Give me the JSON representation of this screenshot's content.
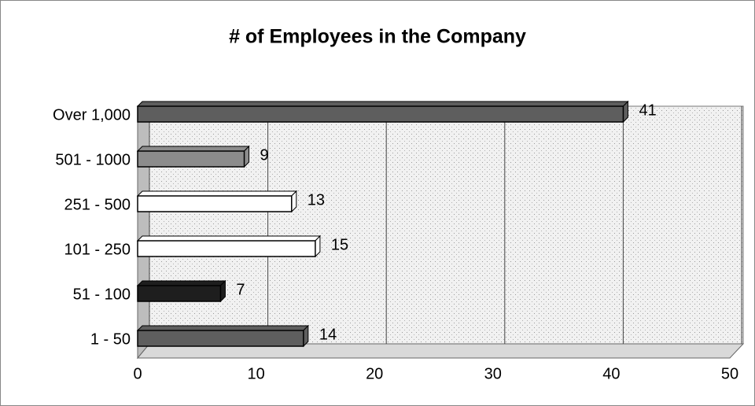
{
  "chart_data": {
    "type": "bar",
    "orientation": "horizontal",
    "title": "# of Employees in the Company",
    "categories": [
      "Over 1,000",
      "501 - 1000",
      "251 - 500",
      "101 - 250",
      "51 - 100",
      "1 - 50"
    ],
    "values": [
      41,
      9,
      13,
      15,
      7,
      14
    ],
    "colors": [
      "#5e5e5e",
      "#8c8c8c",
      "#ffffff",
      "#ffffff",
      "#1e1e1e",
      "#5e5e5e"
    ],
    "xlim": [
      0,
      50
    ],
    "xticks": [
      0,
      10,
      20,
      30,
      40,
      50
    ],
    "grid": true
  }
}
